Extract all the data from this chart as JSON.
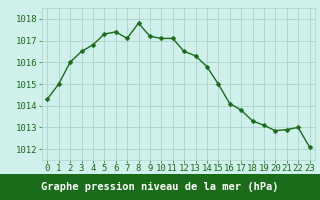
{
  "x": [
    0,
    1,
    2,
    3,
    4,
    5,
    6,
    7,
    8,
    9,
    10,
    11,
    12,
    13,
    14,
    15,
    16,
    17,
    18,
    19,
    20,
    21,
    22,
    23
  ],
  "y": [
    1014.3,
    1015.0,
    1016.0,
    1016.5,
    1016.8,
    1017.3,
    1017.4,
    1017.1,
    1017.8,
    1017.2,
    1017.1,
    1017.1,
    1016.5,
    1016.3,
    1015.8,
    1015.0,
    1014.1,
    1013.8,
    1013.3,
    1013.1,
    1012.85,
    1012.9,
    1013.0,
    1012.1
  ],
  "line_color": "#1a6b1a",
  "marker": "D",
  "marker_size": 2.5,
  "bg_color": "#cff0eb",
  "grid_color": "#aad4cc",
  "xlabel": "Graphe pression niveau de la mer (hPa)",
  "xlabel_fontsize": 7.5,
  "tick_fontsize": 6.5,
  "ylim": [
    1011.5,
    1018.5
  ],
  "yticks": [
    1012,
    1013,
    1014,
    1015,
    1016,
    1017,
    1018
  ],
  "xlim": [
    -0.5,
    23.5
  ],
  "xticks": [
    0,
    1,
    2,
    3,
    4,
    5,
    6,
    7,
    8,
    9,
    10,
    11,
    12,
    13,
    14,
    15,
    16,
    17,
    18,
    19,
    20,
    21,
    22,
    23
  ],
  "line_width": 1.0,
  "bottom_bar_color": "#1a6b1a",
  "bottom_bar_text_color": "#ffffff"
}
